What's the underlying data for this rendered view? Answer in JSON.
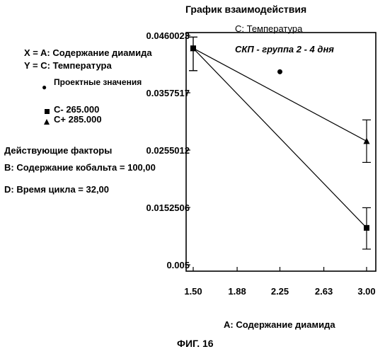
{
  "chart_data": {
    "type": "line",
    "title": "График взаимодействия",
    "subtitle": "С: Температура",
    "annotation": "СКП - группа 2 - 4 дня",
    "xlabel": "А: Содержание диамида",
    "ylabel": "",
    "x_ticks": [
      "1.50",
      "1.88",
      "2.25",
      "2.63",
      "3.00"
    ],
    "y_ticks": [
      "0.005",
      "0.0152506",
      "0.0255012",
      "0.0357517",
      "0.0460023"
    ],
    "xlim": [
      1.5,
      3.0
    ],
    "ylim": [
      0.005,
      0.0460023
    ],
    "grid": false,
    "series": [
      {
        "name": "С- 265.000",
        "marker": "square",
        "x": [
          1.5,
          3.0
        ],
        "y": [
          0.0437,
          0.0116
        ],
        "err_low": [
          0.0397,
          0.0078
        ],
        "err_high": [
          0.0457,
          0.0152
        ]
      },
      {
        "name": "С+ 285.000",
        "marker": "triangle",
        "x": [
          1.5,
          3.0
        ],
        "y": [
          0.0437,
          0.0271
        ],
        "err_low": [
          0.0397,
          0.0233
        ],
        "err_high": [
          0.0457,
          0.0309
        ]
      }
    ],
    "design_points": [
      {
        "x": 2.25,
        "y": 0.0395
      }
    ]
  },
  "legend": {
    "x_line": "X = A: Содержание диамида",
    "y_line": "Y = C: Температура",
    "design_label": "Проектные значения",
    "series_low": "С- 265.000",
    "series_high": "С+ 285.000"
  },
  "factors": {
    "heading": "Действующие факторы",
    "b_line": "В: Содержание кобальта = 100,00",
    "d_line": "D: Время цикла = 32,00"
  },
  "figure_caption": "ФИГ. 16"
}
